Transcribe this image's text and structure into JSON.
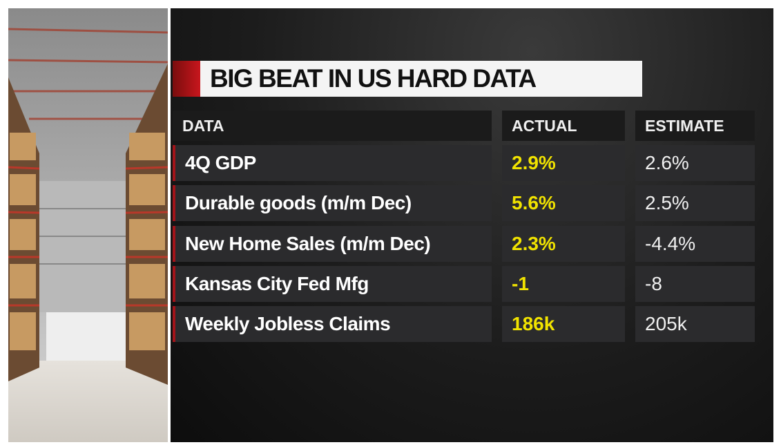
{
  "header": {
    "title": "BIG BEAT IN US HARD DATA"
  },
  "table": {
    "columns": [
      "DATA",
      "ACTUAL",
      "ESTIMATE"
    ],
    "rows": [
      [
        "4Q GDP",
        "2.9%",
        "2.6%"
      ],
      [
        "Durable goods (m/m Dec)",
        "5.6%",
        "2.5%"
      ],
      [
        "New Home Sales (m/m Dec)",
        "2.3%",
        "-4.4%"
      ],
      [
        "Kansas City Fed Mfg",
        "-1",
        "-8"
      ],
      [
        "Weekly Jobless Claims",
        "186k",
        "205k"
      ]
    ]
  }
}
